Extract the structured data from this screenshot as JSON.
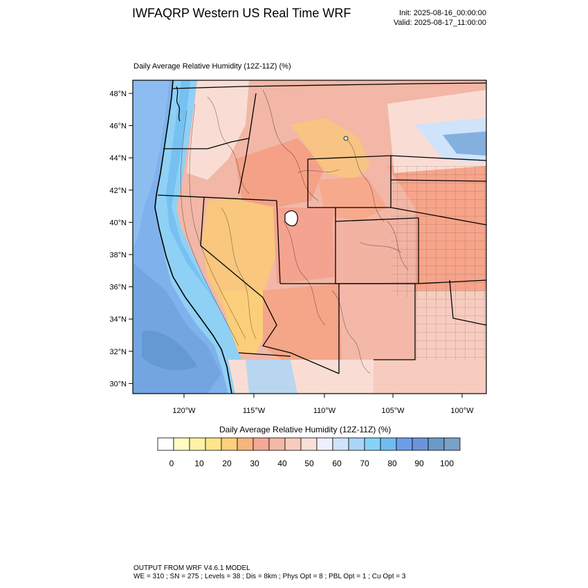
{
  "header": {
    "title": "IWFAQRP Western US Real Time WRF",
    "init": "Init: 2025-08-16_00:00:00",
    "valid": "Valid: 2025-08-17_11:00:00"
  },
  "panel": {
    "title": "Daily Average Relative Humidity (12Z-11Z)   (%)"
  },
  "map": {
    "lat_labels": [
      "48°N",
      "46°N",
      "44°N",
      "42°N",
      "40°N",
      "38°N",
      "36°N",
      "34°N",
      "32°N",
      "30°N"
    ],
    "lon_labels": [
      "120°W",
      "115°W",
      "110°W",
      "105°W",
      "100°W"
    ],
    "ocean_color": "#6fa7e8",
    "land_dry_color": "#f4b39a",
    "land_very_dry_color": "#f9c77d"
  },
  "colorbar": {
    "title": "Daily Average Relative Humidity (12Z-11Z)  (%)",
    "labels": [
      "0",
      "10",
      "20",
      "30",
      "40",
      "50",
      "60",
      "70",
      "80",
      "90",
      "100"
    ],
    "colors": [
      "#ffffff",
      "#fffcc5",
      "#fff3a7",
      "#fee68a",
      "#fcd07c",
      "#f8b57c",
      "#f4a897",
      "#f3b8a8",
      "#f7ccbf",
      "#f9e0d8",
      "#eef0fb",
      "#cfe3fb",
      "#a9d5f7",
      "#85d3f9",
      "#6fbdf0",
      "#6d9ee8",
      "#6b95d8",
      "#6b9ac9",
      "#7aa1c6"
    ]
  },
  "footer": {
    "line1": "OUTPUT FROM WRF V4.6.1 MODEL",
    "line2": "WE = 310 ; SN = 275 ; Levels = 38 ; Dis = 8km ; Phys Opt = 8 ; PBL Opt = 1 ; Cu Opt = 3"
  }
}
